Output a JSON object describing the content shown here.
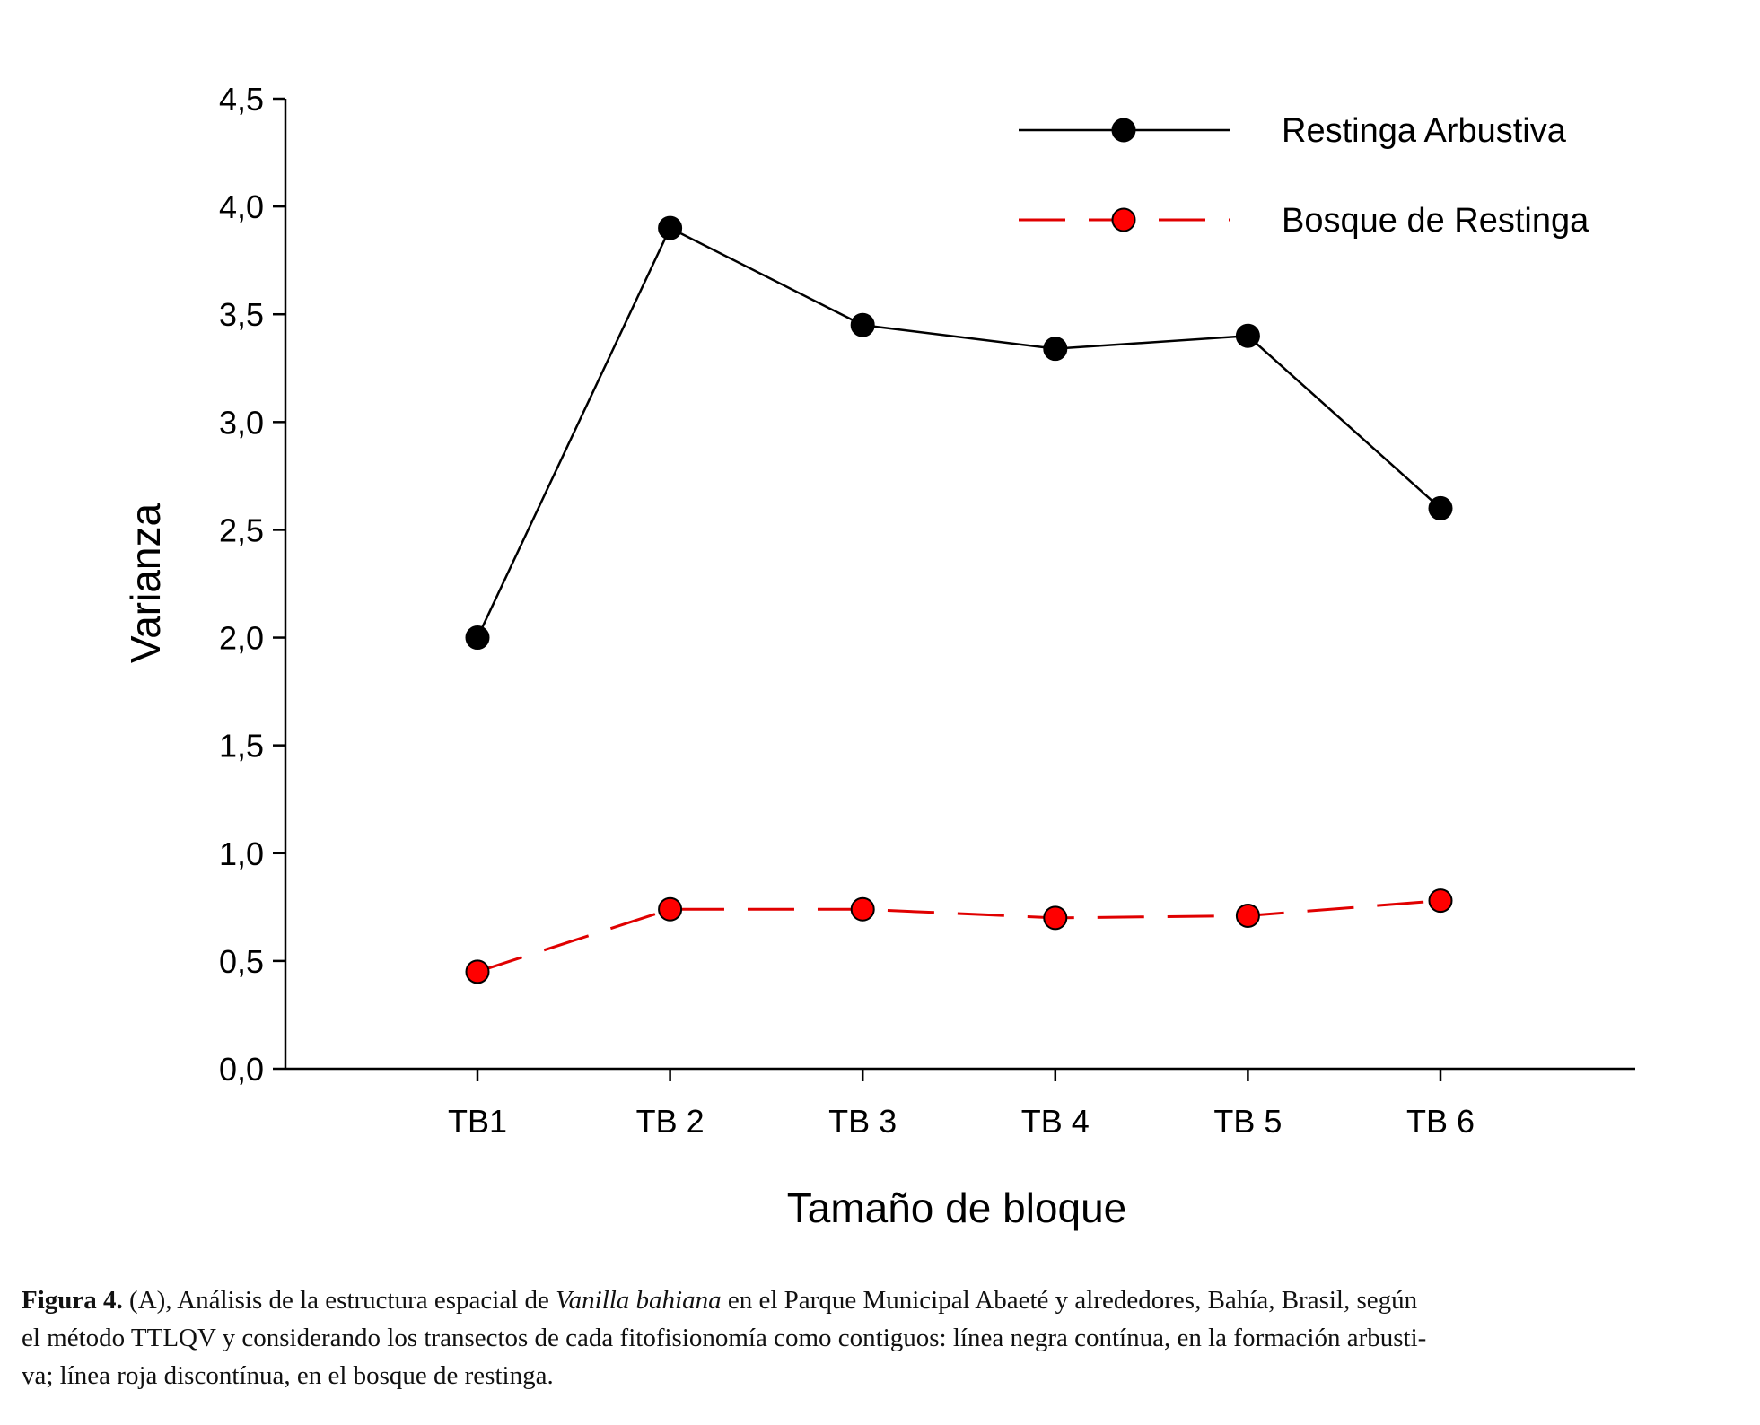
{
  "chart_data": {
    "type": "line",
    "categories": [
      "TB1",
      "TB 2",
      "TB 3",
      "TB 4",
      "TB 5",
      "TB 6"
    ],
    "series": [
      {
        "name": "Restinga Arbustiva",
        "values": [
          2.0,
          3.9,
          3.45,
          3.34,
          3.4,
          2.6
        ],
        "color": "#000000",
        "marker_color": "#000000",
        "line_style": "solid"
      },
      {
        "name": "Bosque de Restinga",
        "values": [
          0.45,
          0.74,
          0.74,
          0.7,
          0.71,
          0.78
        ],
        "color": "#e00000",
        "marker_color": "#ff0000",
        "line_style": "dashed"
      }
    ],
    "title": "",
    "xlabel": "Tamaño de bloque",
    "ylabel": "Varianza",
    "ylim": [
      0,
      4.5
    ],
    "yticks": [
      "0,0",
      "0,5",
      "1,0",
      "1,5",
      "2,0",
      "2,5",
      "3,0",
      "3,5",
      "4,0",
      "4,5"
    ],
    "grid": false,
    "legend_position": "top-right"
  },
  "caption": {
    "label": "Figura 4.",
    "text_before_species": " (A), Análisis de la estructura espacial de ",
    "species": "Vanilla bahiana",
    "line1_after_species": " en el Parque Municipal Abaeté y alrededores, Bahía, Brasil, según",
    "line2": "el método TTLQV y considerando los transectos de cada fitofisionomía como contiguos: línea negra contínua, en la formación arbusti-",
    "line3": "va; línea roja discontínua, en el bosque de restinga."
  }
}
